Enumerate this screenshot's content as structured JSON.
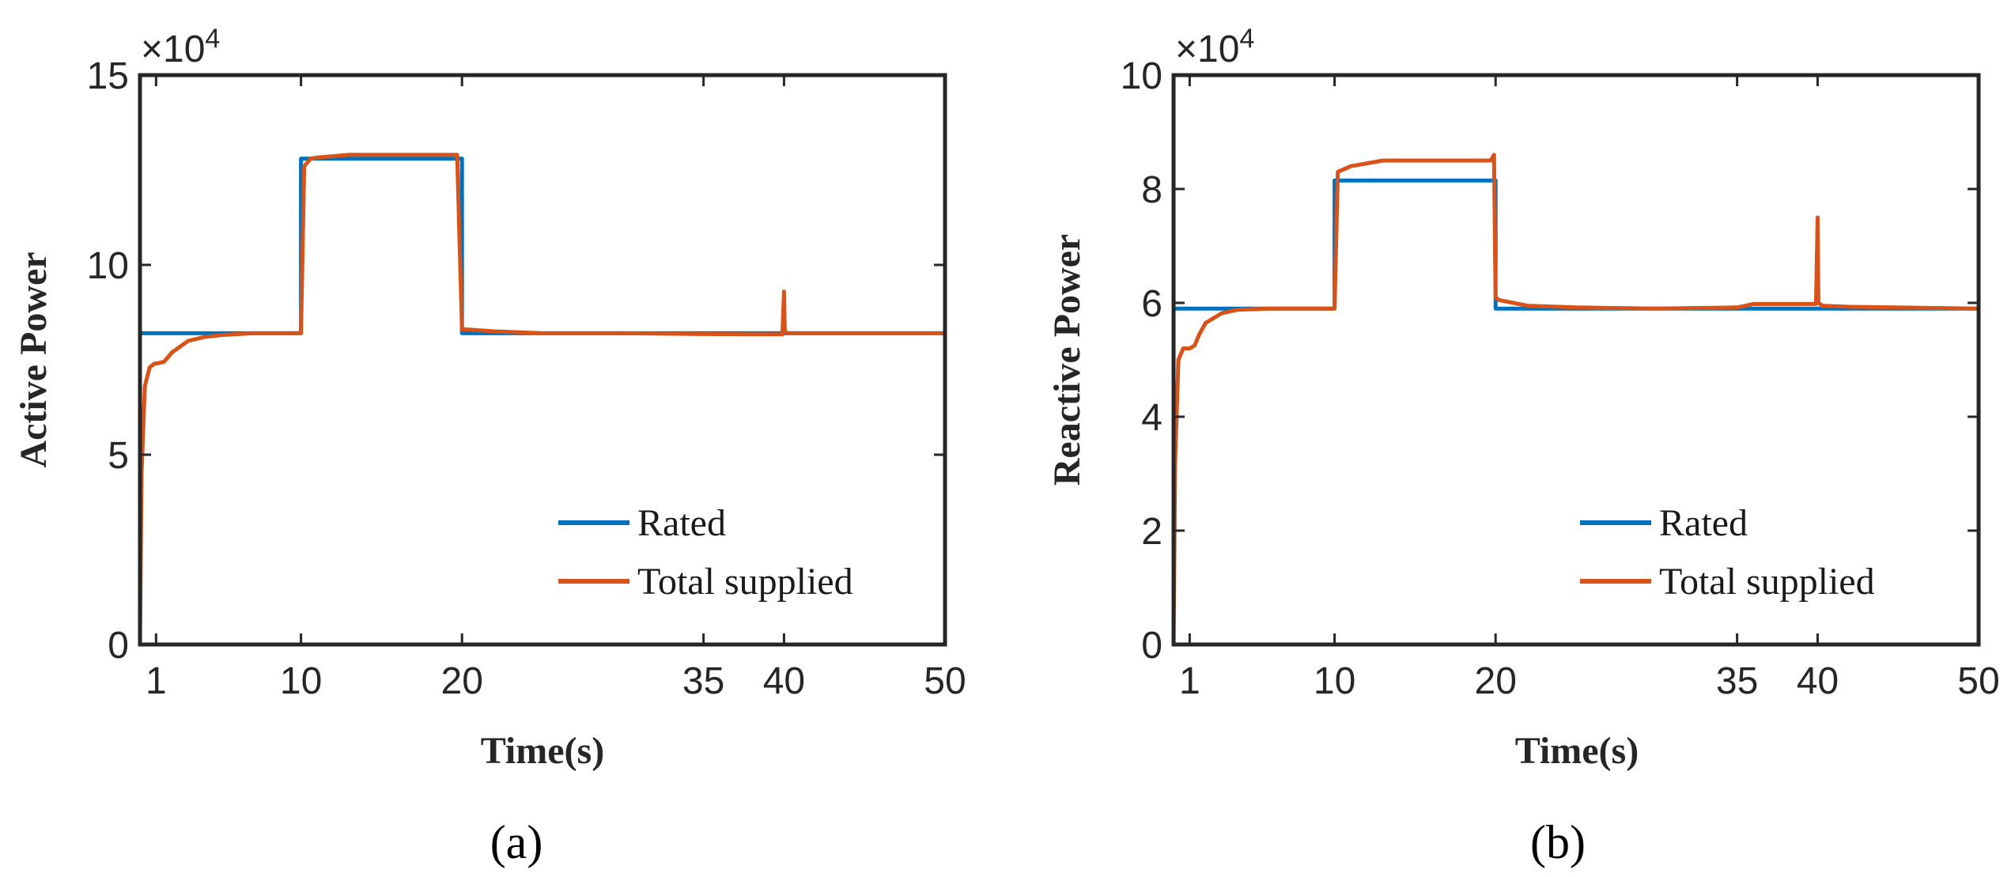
{
  "colors": {
    "rated": "#0072BD",
    "supplied": "#D95319",
    "axis": "#262626"
  },
  "chart_data": [
    {
      "type": "line",
      "panel_label": "(a)",
      "xlabel": "Time(s)",
      "ylabel": "Active Power",
      "xlim": [
        0,
        50
      ],
      "ylim": [
        0,
        150000
      ],
      "xticks": [
        1,
        10,
        20,
        35,
        40,
        50
      ],
      "yticks": [
        0,
        50000,
        100000,
        150000
      ],
      "ytick_labels": [
        "0",
        "5",
        "10",
        "15"
      ],
      "y_multiplier": "×10",
      "y_multiplier_exp": "4",
      "legend_position": "bottom-right",
      "series": [
        {
          "name": "Rated",
          "color_key": "rated",
          "x": [
            0,
            10,
            10,
            20,
            20,
            50
          ],
          "y": [
            82000,
            82000,
            128000,
            128000,
            82000,
            82000
          ]
        },
        {
          "name": "Total supplied",
          "color_key": "supplied",
          "x": [
            0,
            0.1,
            0.3,
            0.6,
            0.9,
            1.0,
            1.5,
            2,
            3,
            4,
            5,
            7,
            10,
            10.2,
            10.6,
            11,
            13,
            15,
            18,
            19.7,
            20,
            20.3,
            22,
            25,
            30,
            35,
            38,
            39.9,
            40.0,
            40.05,
            40.2,
            41,
            45,
            50
          ],
          "y": [
            0,
            45000,
            68000,
            73000,
            74000,
            74000,
            74500,
            77000,
            80000,
            81000,
            81500,
            82000,
            82000,
            126000,
            128000,
            128300,
            129000,
            129000,
            129000,
            129000,
            83000,
            83000,
            82500,
            82000,
            82000,
            81800,
            81700,
            81700,
            93000,
            82500,
            82000,
            82000,
            82000,
            82000
          ]
        }
      ]
    },
    {
      "type": "line",
      "panel_label": "(b)",
      "xlabel": "Time(s)",
      "ylabel": "Reactive Power",
      "xlim": [
        0,
        50
      ],
      "ylim": [
        0,
        100000
      ],
      "xticks": [
        1,
        10,
        20,
        35,
        40,
        50
      ],
      "yticks": [
        0,
        20000,
        40000,
        60000,
        80000,
        100000
      ],
      "ytick_labels": [
        "0",
        "2",
        "4",
        "6",
        "8",
        "10"
      ],
      "y_multiplier": "×10",
      "y_multiplier_exp": "4",
      "legend_position": "bottom-right",
      "series": [
        {
          "name": "Rated",
          "color_key": "rated",
          "x": [
            0,
            10,
            10,
            20,
            20,
            50
          ],
          "y": [
            59000,
            59000,
            81500,
            81500,
            59000,
            59000
          ]
        },
        {
          "name": "Total supplied",
          "color_key": "supplied",
          "x": [
            0,
            0.1,
            0.3,
            0.6,
            1.0,
            1.3,
            1.6,
            2,
            3,
            4,
            6,
            10,
            10.2,
            10.6,
            11,
            13,
            15,
            18,
            19.7,
            19.9,
            20.0,
            20.2,
            22,
            25,
            30,
            35,
            36,
            39.9,
            40.0,
            40.05,
            40.3,
            42,
            50
          ],
          "y": [
            0,
            32000,
            50000,
            52000,
            52000,
            52500,
            54500,
            56500,
            58200,
            58800,
            59000,
            59000,
            83000,
            83500,
            84000,
            85000,
            85000,
            85000,
            85000,
            86000,
            61000,
            60500,
            59500,
            59200,
            59000,
            59200,
            59800,
            59800,
            75000,
            60000,
            59500,
            59300,
            59000
          ]
        }
      ]
    }
  ]
}
